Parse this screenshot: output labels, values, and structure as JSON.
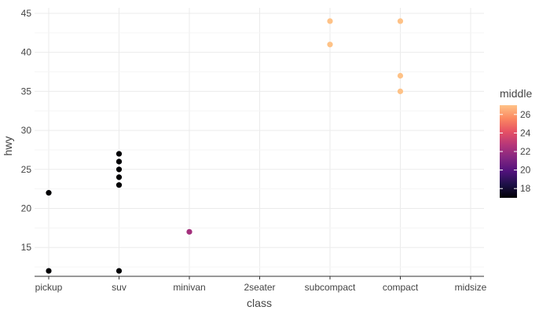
{
  "chart_data": {
    "type": "scatter",
    "title": "",
    "xlabel": "class",
    "ylabel": "hwy",
    "categories": [
      "pickup",
      "suv",
      "minivan",
      "2seater",
      "subcompact",
      "compact",
      "midsize"
    ],
    "ylim": [
      11.3,
      45.7
    ],
    "yticks": [
      15,
      20,
      25,
      30,
      35,
      40,
      45
    ],
    "grid": true,
    "points": [
      {
        "x": "pickup",
        "y": 22,
        "color": 17
      },
      {
        "x": "pickup",
        "y": 12,
        "color": 17
      },
      {
        "x": "suv",
        "y": 27,
        "color": 17
      },
      {
        "x": "suv",
        "y": 26,
        "color": 17
      },
      {
        "x": "suv",
        "y": 25,
        "color": 17
      },
      {
        "x": "suv",
        "y": 24,
        "color": 17
      },
      {
        "x": "suv",
        "y": 23,
        "color": 17
      },
      {
        "x": "suv",
        "y": 12,
        "color": 17
      },
      {
        "x": "minivan",
        "y": 17,
        "color": 22.2
      },
      {
        "x": "subcompact",
        "y": 44,
        "color": 27
      },
      {
        "x": "subcompact",
        "y": 41,
        "color": 27
      },
      {
        "x": "compact",
        "y": 44,
        "color": 27
      },
      {
        "x": "compact",
        "y": 37,
        "color": 27
      },
      {
        "x": "compact",
        "y": 35,
        "color": 27
      }
    ],
    "legend": {
      "title": "middle",
      "type": "colorbar",
      "placement": "right",
      "range": [
        17,
        27
      ],
      "ticks": [
        18,
        20,
        22,
        24,
        26
      ],
      "palette": [
        "#000004",
        "#1d1147",
        "#51127c",
        "#822681",
        "#b63679",
        "#e65164",
        "#fb8861",
        "#fec287"
      ]
    }
  }
}
